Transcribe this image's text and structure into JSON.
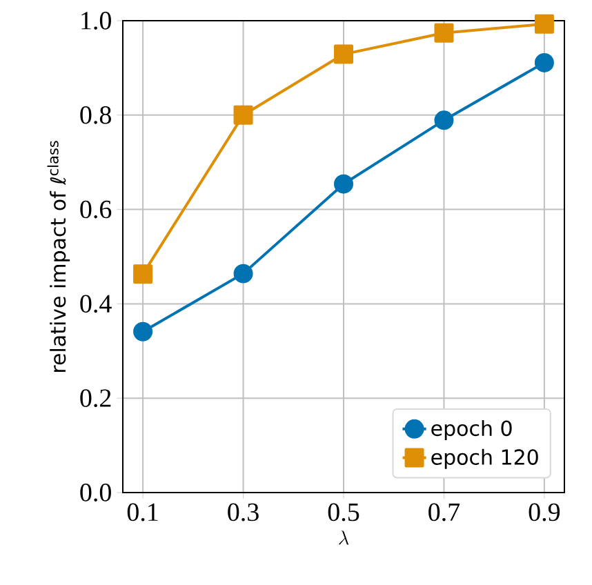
{
  "chart_data": {
    "type": "line",
    "xlabel": "\\lambda",
    "ylabel": "relative impact of ℓ$^{class}$",
    "x": [
      0.1,
      0.3,
      0.5,
      0.7,
      0.9
    ],
    "series": [
      {
        "name": "epoch 0",
        "color": "#0173b2",
        "marker": "circle",
        "values": [
          0.341,
          0.464,
          0.654,
          0.789,
          0.911
        ]
      },
      {
        "name": "epoch 120",
        "color": "#de8f05",
        "marker": "square",
        "values": [
          0.463,
          0.8,
          0.929,
          0.974,
          0.993
        ]
      }
    ],
    "xlim": [
      0.06,
      0.94
    ],
    "ylim": [
      0,
      1
    ],
    "xticks": [
      0.1,
      0.3,
      0.5,
      0.7,
      0.9
    ],
    "yticks": [
      {
        "value": 0,
        "label": "0.0"
      },
      0.2,
      0.4,
      0.6,
      0.8,
      {
        "value": 1,
        "label": "1.0"
      }
    ],
    "grid": true,
    "legend": "bottom right"
  }
}
